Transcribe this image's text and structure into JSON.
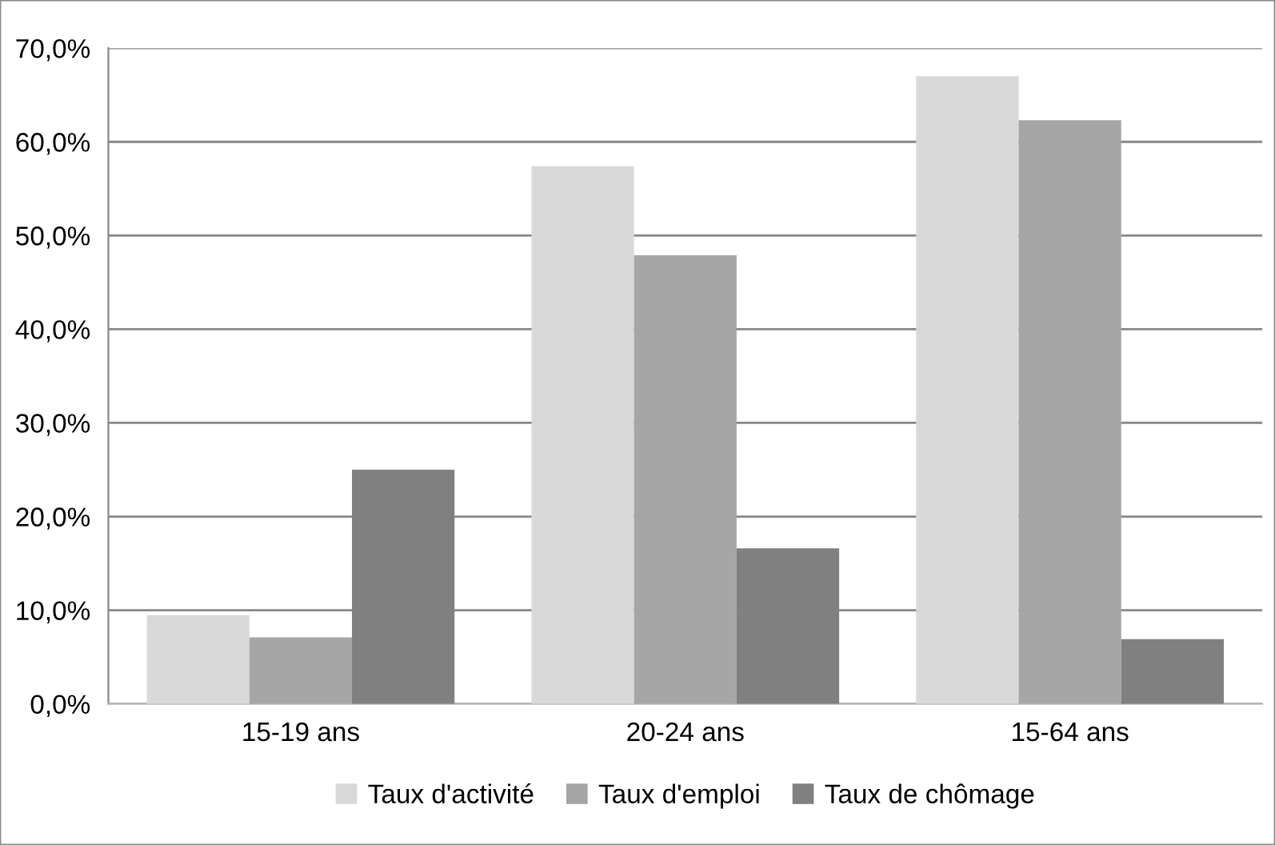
{
  "chart_data": {
    "type": "bar",
    "categories": [
      "15-19 ans",
      "20-24 ans",
      "15-64 ans"
    ],
    "series": [
      {
        "name": "Taux d'activité",
        "color": "#d9d9d9",
        "values": [
          9.5,
          57.4,
          67.0
        ]
      },
      {
        "name": "Taux d'emploi",
        "color": "#a6a6a6",
        "values": [
          7.1,
          47.9,
          62.3
        ]
      },
      {
        "name": "Taux de chômage",
        "color": "#808080",
        "values": [
          25.0,
          16.6,
          6.9
        ]
      }
    ],
    "ylim": [
      0,
      70
    ],
    "yticks": [
      {
        "value": 0,
        "label": "0,0%"
      },
      {
        "value": 10,
        "label": "10,0%"
      },
      {
        "value": 20,
        "label": "20,0%"
      },
      {
        "value": 30,
        "label": "30,0%"
      },
      {
        "value": 40,
        "label": "40,0%"
      },
      {
        "value": 50,
        "label": "50,0%"
      },
      {
        "value": 60,
        "label": "60,0%"
      },
      {
        "value": 70,
        "label": "70,0%"
      }
    ],
    "grid": "y",
    "legend": "bottom"
  }
}
